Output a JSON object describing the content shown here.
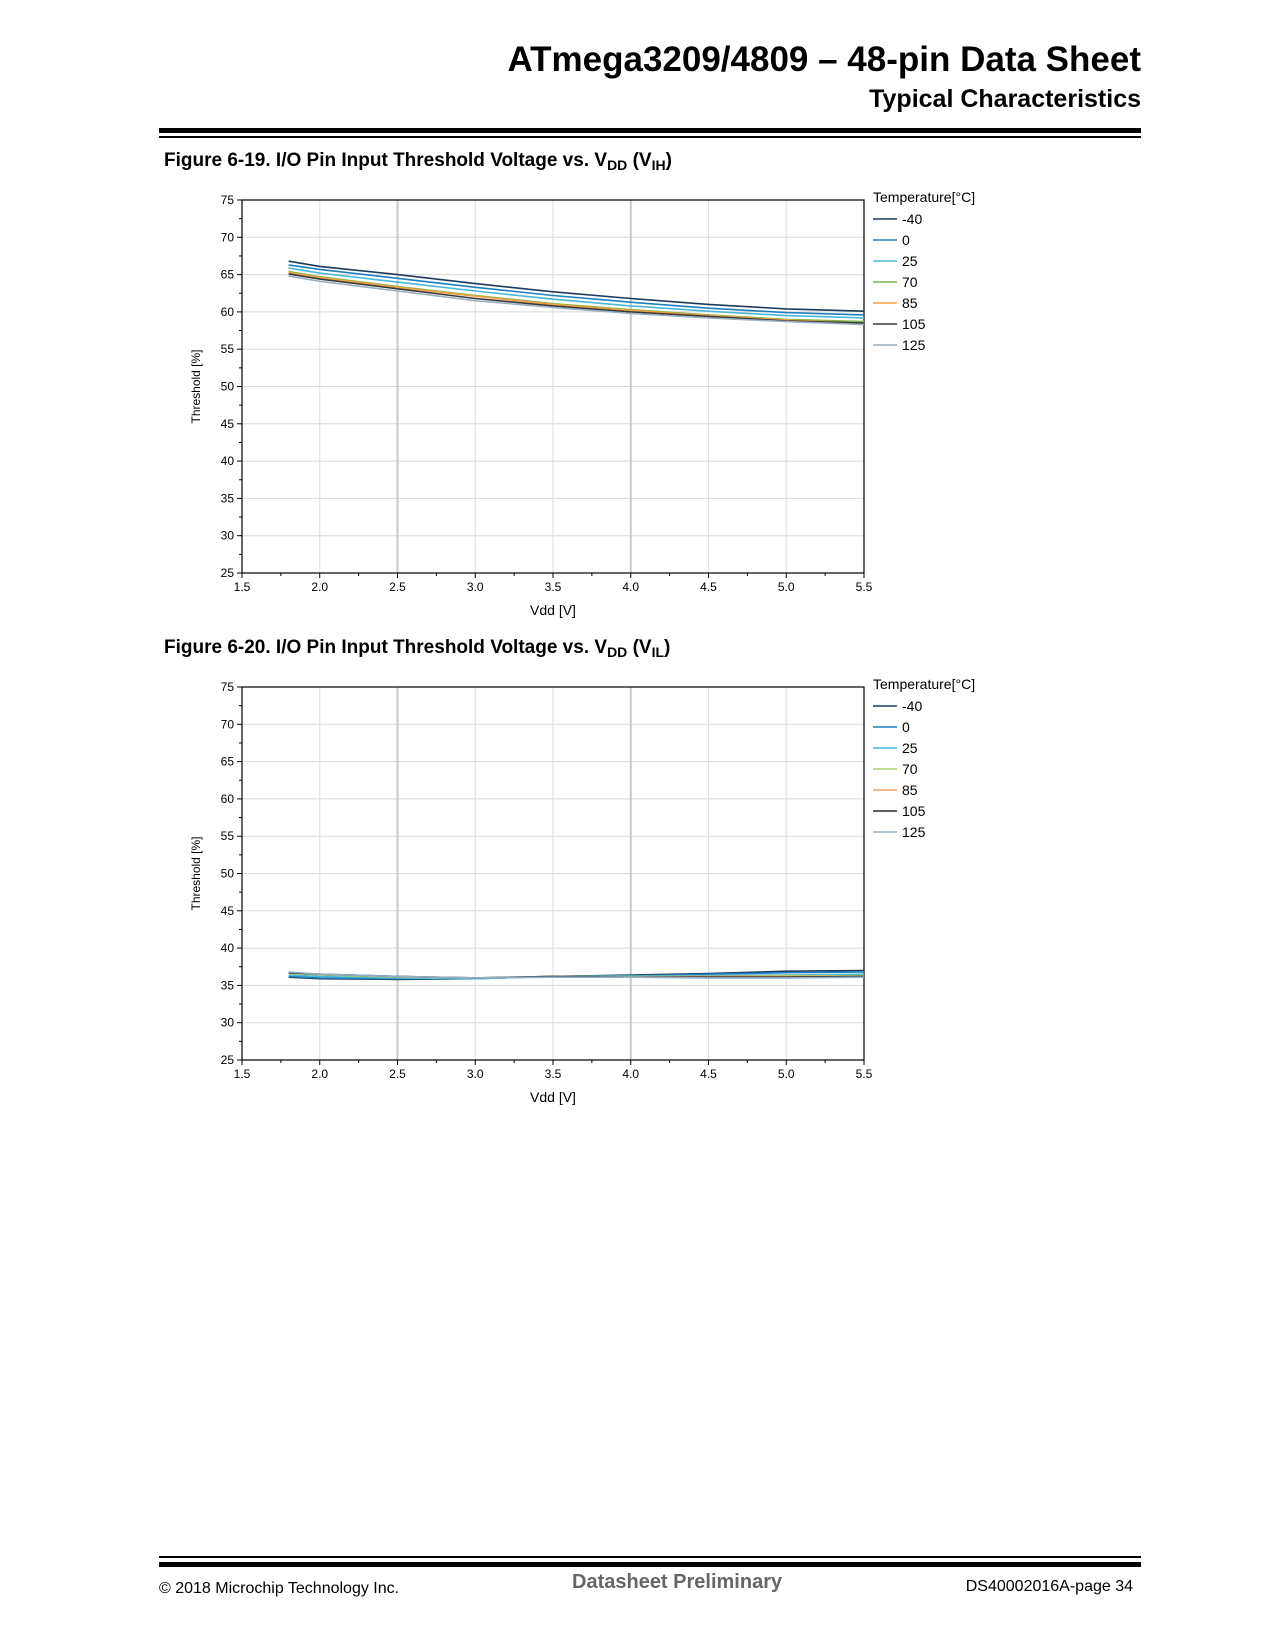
{
  "header": {
    "title": "ATmega3209/4809 – 48-pin Data Sheet",
    "subtitle": "Typical Characteristics"
  },
  "figures": [
    {
      "caption_prefix": "Figure 6-19.  I/O Pin Input Threshold Voltage vs. V",
      "caption_sub1": "DD",
      "caption_mid": " (V",
      "caption_sub2": "IH",
      "caption_suffix": ")"
    },
    {
      "caption_prefix": "Figure 6-20.  I/O Pin Input Threshold Voltage vs. V",
      "caption_sub1": "DD",
      "caption_mid": " (V",
      "caption_sub2": "IL",
      "caption_suffix": ")"
    }
  ],
  "chart_data": [
    {
      "type": "line",
      "xlabel": "Vdd [V]",
      "ylabel": "Threshold [%]",
      "xlim": [
        1.5,
        5.5
      ],
      "ylim": [
        25,
        75
      ],
      "xticks": [
        "1.5",
        "2.0",
        "2.5",
        "3.0",
        "3.5",
        "4.0",
        "4.5",
        "5.0",
        "5.5"
      ],
      "yticks": [
        "25",
        "30",
        "35",
        "40",
        "45",
        "50",
        "55",
        "60",
        "65",
        "70",
        "75"
      ],
      "grid": true,
      "legend_title": "Temperature[°C]",
      "legend_position": "right",
      "x": [
        1.8,
        2.0,
        2.5,
        3.0,
        3.5,
        4.0,
        4.5,
        5.0,
        5.5
      ],
      "series": [
        {
          "name": "-40",
          "color": "#1f3a5f",
          "values": [
            66.8,
            66.1,
            65.0,
            63.8,
            62.7,
            61.8,
            61.0,
            60.4,
            60.1
          ]
        },
        {
          "name": "0",
          "color": "#1f7fbf",
          "values": [
            66.3,
            65.7,
            64.5,
            63.3,
            62.2,
            61.3,
            60.5,
            59.9,
            59.6
          ]
        },
        {
          "name": "25",
          "color": "#4ab8d8",
          "values": [
            65.9,
            65.2,
            64.0,
            62.8,
            61.7,
            60.8,
            60.1,
            59.5,
            59.2
          ]
        },
        {
          "name": "70",
          "color": "#7ab648",
          "values": [
            65.4,
            64.7,
            63.4,
            62.2,
            61.1,
            60.3,
            59.6,
            59.0,
            58.7
          ]
        },
        {
          "name": "85",
          "color": "#f0a040",
          "values": [
            65.3,
            64.6,
            63.3,
            62.1,
            61.0,
            60.2,
            59.5,
            58.9,
            58.5
          ]
        },
        {
          "name": "105",
          "color": "#3a3a3a",
          "values": [
            65.1,
            64.4,
            63.1,
            61.8,
            60.8,
            60.0,
            59.4,
            58.8,
            58.5
          ]
        },
        {
          "name": "125",
          "color": "#9ab0c0",
          "values": [
            64.8,
            64.1,
            62.8,
            61.5,
            60.6,
            59.8,
            59.2,
            58.7,
            58.3
          ]
        }
      ]
    },
    {
      "type": "line",
      "xlabel": "Vdd [V]",
      "ylabel": "Threshold [%]",
      "xlim": [
        1.5,
        5.5
      ],
      "ylim": [
        25,
        75
      ],
      "xticks": [
        "1.5",
        "2.0",
        "2.5",
        "3.0",
        "3.5",
        "4.0",
        "4.5",
        "5.0",
        "5.5"
      ],
      "yticks": [
        "25",
        "30",
        "35",
        "40",
        "45",
        "50",
        "55",
        "60",
        "65",
        "70",
        "75"
      ],
      "grid": true,
      "legend_title": "Temperature[°C]",
      "legend_position": "right",
      "x": [
        1.8,
        2.0,
        2.5,
        3.0,
        3.5,
        4.0,
        4.5,
        5.0,
        5.5
      ],
      "series": [
        {
          "name": "-40",
          "color": "#1f3a5f",
          "values": [
            36.1,
            35.9,
            35.8,
            35.9,
            36.2,
            36.4,
            36.6,
            36.9,
            37.0
          ]
        },
        {
          "name": "0",
          "color": "#1f7fbf",
          "values": [
            36.2,
            36.0,
            35.9,
            35.9,
            36.2,
            36.3,
            36.5,
            36.7,
            36.8
          ]
        },
        {
          "name": "25",
          "color": "#4ab8d8",
          "values": [
            36.4,
            36.2,
            36.0,
            35.9,
            36.2,
            36.2,
            36.3,
            36.4,
            36.5
          ]
        },
        {
          "name": "70",
          "color": "#a8d070",
          "values": [
            36.6,
            36.4,
            36.1,
            36.0,
            36.2,
            36.2,
            36.2,
            36.3,
            36.3
          ]
        },
        {
          "name": "85",
          "color": "#f0a060",
          "values": [
            36.7,
            36.5,
            36.2,
            36.0,
            36.2,
            36.1,
            36.2,
            36.2,
            36.2
          ]
        },
        {
          "name": "105",
          "color": "#2a2a2a",
          "values": [
            36.7,
            36.5,
            36.2,
            36.0,
            36.2,
            36.1,
            36.1,
            36.1,
            36.2
          ]
        },
        {
          "name": "125",
          "color": "#8fb0cc",
          "values": [
            36.8,
            36.5,
            36.2,
            36.0,
            36.1,
            36.1,
            36.0,
            36.0,
            36.1
          ]
        }
      ]
    }
  ],
  "footer": {
    "copyright": "© 2018 Microchip Technology Inc.",
    "status": "Datasheet Preliminary",
    "doc_page": "DS40002016A-page 34"
  }
}
